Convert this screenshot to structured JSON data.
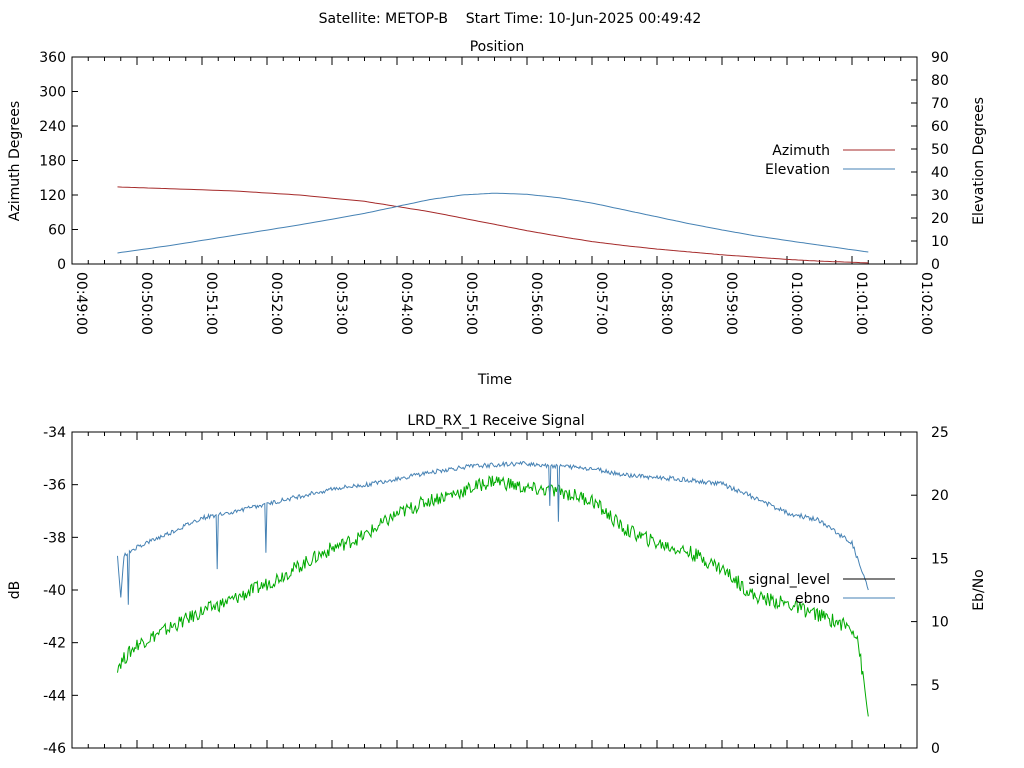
{
  "page": {
    "header": "Satellite: METOP-B    Start Time: 10-Jun-2025 00:49:42"
  },
  "chart_data": [
    {
      "type": "line",
      "title": "Position",
      "xlabel": "Time",
      "ylabel_left": "Azimuth Degrees",
      "ylabel_right": "Elevation Degrees",
      "xlim": [
        "00:49:00",
        "01:02:00"
      ],
      "ylim_left": [
        0,
        360
      ],
      "ylim_right": [
        0,
        90
      ],
      "yticks_left": [
        "0",
        "60",
        "120",
        "180",
        "240",
        "300",
        "360"
      ],
      "yticks_right": [
        "0",
        "10",
        "20",
        "30",
        "40",
        "50",
        "60",
        "70",
        "80",
        "90"
      ],
      "xticks": [
        "00:49:00",
        "00:50:00",
        "00:51:00",
        "00:52:00",
        "00:53:00",
        "00:54:00",
        "00:55:00",
        "00:56:00",
        "00:57:00",
        "00:58:00",
        "00:59:00",
        "01:00:00",
        "01:01:00",
        "01:02:00"
      ],
      "grid": false,
      "legend": "right",
      "series": [
        {
          "name": "Azimuth",
          "axis": "left",
          "color": "#a52a2a",
          "x": [
            "00:49:42",
            "00:50:30",
            "00:51:30",
            "00:52:30",
            "00:53:30",
            "00:54:00",
            "00:54:30",
            "00:55:00",
            "00:55:30",
            "00:56:00",
            "00:56:30",
            "00:57:00",
            "00:57:30",
            "00:58:00",
            "00:58:30",
            "00:59:00",
            "00:59:30",
            "01:00:00",
            "01:00:30",
            "01:01:15"
          ],
          "values": [
            134,
            131,
            127,
            120,
            109,
            100,
            91,
            80,
            69,
            58,
            48,
            39,
            32,
            26,
            21,
            16,
            12,
            8,
            5,
            2
          ]
        },
        {
          "name": "Elevation",
          "axis": "right",
          "color": "#4682b4",
          "x": [
            "00:49:42",
            "00:50:30",
            "00:51:30",
            "00:52:30",
            "00:53:30",
            "00:54:00",
            "00:54:30",
            "00:55:00",
            "00:55:30",
            "00:56:00",
            "00:56:30",
            "00:57:00",
            "00:57:30",
            "00:58:00",
            "00:58:30",
            "00:59:00",
            "00:59:30",
            "01:00:00",
            "01:00:30",
            "01:01:15"
          ],
          "values": [
            4.8,
            8,
            12.5,
            17,
            22,
            25,
            28,
            30,
            30.8,
            30.3,
            28.8,
            26.5,
            23.5,
            20.5,
            17.5,
            14.8,
            12.3,
            10.2,
            8.2,
            5.2
          ]
        }
      ]
    },
    {
      "type": "line",
      "title": "LRD_RX_1 Receive Signal",
      "ylabel_left": "dB",
      "ylabel_right": "Eb/No",
      "xlim": [
        "00:49:00",
        "01:02:00"
      ],
      "ylim_left": [
        -46,
        -34
      ],
      "ylim_right": [
        0,
        25
      ],
      "yticks_left": [
        "-46",
        "-44",
        "-42",
        "-40",
        "-38",
        "-36",
        "-34"
      ],
      "yticks_right": [
        "0",
        "5",
        "10",
        "15",
        "20",
        "25"
      ],
      "grid": false,
      "legend": "right",
      "series": [
        {
          "name": "signal_level",
          "axis": "left",
          "color": "#000000",
          "legend_only": true,
          "x": [],
          "values": []
        },
        {
          "name": "",
          "axis": "right",
          "color": "#00aa00",
          "x": [
            "00:49:42",
            "00:50:00",
            "00:50:30",
            "00:51:00",
            "00:51:30",
            "00:52:00",
            "00:52:30",
            "00:53:00",
            "00:53:30",
            "00:54:00",
            "00:54:30",
            "00:55:00",
            "00:55:30",
            "00:56:00",
            "00:56:30",
            "00:57:00",
            "00:57:30",
            "00:58:00",
            "00:58:30",
            "00:59:00",
            "00:59:30",
            "01:00:00",
            "01:00:30",
            "01:01:00",
            "01:01:05",
            "01:01:15"
          ],
          "values": [
            6.5,
            8.2,
            9.5,
            10.8,
            11.8,
            13.0,
            14.4,
            15.8,
            16.8,
            18.5,
            19.6,
            20.3,
            21.2,
            20.5,
            20.3,
            19.6,
            17.3,
            16.2,
            15.5,
            14.2,
            12.0,
            11.4,
            10.5,
            9.5,
            8.8,
            2.5
          ]
        },
        {
          "name": "ebno",
          "axis": "right",
          "color": "#4682b4",
          "x": [
            "00:49:42",
            "00:49:45",
            "00:49:48",
            "00:50:00",
            "00:50:30",
            "00:51:00",
            "00:51:30",
            "00:52:00",
            "00:52:30",
            "00:53:00",
            "00:53:30",
            "00:54:00",
            "00:54:30",
            "00:55:00",
            "00:55:30",
            "00:56:00",
            "00:56:30",
            "00:57:00",
            "00:57:30",
            "00:58:00",
            "00:58:30",
            "00:59:00",
            "00:59:30",
            "01:00:00",
            "01:00:30",
            "01:01:00",
            "01:01:15"
          ],
          "values": [
            15.2,
            11.8,
            15.2,
            15.9,
            17.0,
            18.2,
            18.7,
            19.3,
            19.9,
            20.5,
            20.8,
            21.3,
            21.8,
            22.2,
            22.4,
            22.5,
            22.3,
            22.1,
            21.6,
            21.4,
            21.2,
            20.9,
            19.8,
            18.6,
            18.0,
            16.2,
            12.5
          ]
        }
      ]
    }
  ]
}
